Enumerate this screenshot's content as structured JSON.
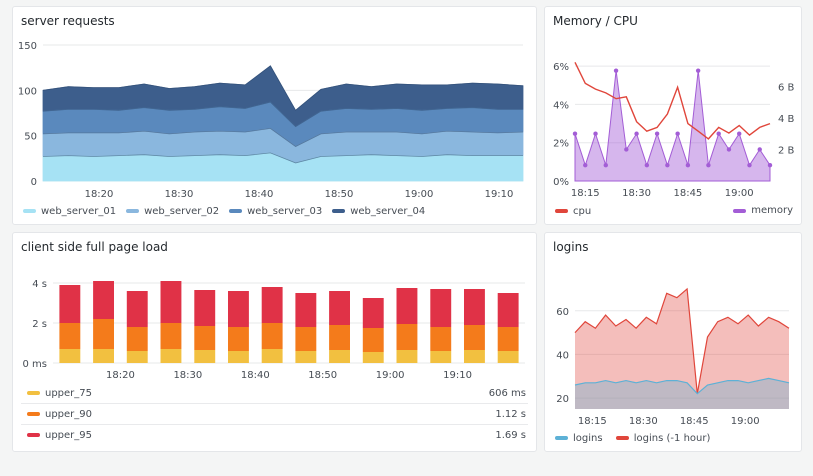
{
  "colors": {
    "web_server_01": "#a6e2f4",
    "web_server_02": "#8ab7de",
    "web_server_03": "#5a89bd",
    "web_server_04": "#3d5e8c",
    "cpu": "#e0463b",
    "memory": "#a35dd6",
    "upper_75": "#f2c040",
    "upper_90": "#f47b1b",
    "upper_95": "#e03247",
    "logins": "#5db1d6",
    "logins_prev": "#e0463b"
  },
  "panels": {
    "server_requests": {
      "title": "server requests",
      "legend": [
        "web_server_01",
        "web_server_02",
        "web_server_03",
        "web_server_04"
      ]
    },
    "memory_cpu": {
      "title": "Memory / CPU",
      "legend": [
        "cpu",
        "memory"
      ]
    },
    "page_load": {
      "title": "client side full page load",
      "legend": [
        {
          "name": "upper_75",
          "value": "606 ms"
        },
        {
          "name": "upper_90",
          "value": "1.12 s"
        },
        {
          "name": "upper_95",
          "value": "1.69 s"
        }
      ]
    },
    "logins": {
      "title": "logins",
      "legend": [
        "logins",
        "logins (-1 hour)"
      ]
    }
  },
  "chart_data": [
    {
      "type": "area",
      "title": "server requests",
      "stacked": true,
      "x": [
        "18:13",
        "18:17",
        "18:20",
        "18:23",
        "18:27",
        "18:30",
        "18:33",
        "18:37",
        "18:40",
        "18:43",
        "18:45",
        "18:47",
        "18:50",
        "18:53",
        "18:57",
        "19:00",
        "19:03",
        "19:07",
        "19:10",
        "19:13"
      ],
      "x_ticks": [
        "18:20",
        "18:30",
        "18:40",
        "18:50",
        "19:00",
        "19:10"
      ],
      "y_ticks": [
        "0",
        "50",
        "100",
        "150"
      ],
      "ylim": [
        0,
        150
      ],
      "series": [
        {
          "name": "web_server_01",
          "values": [
            27,
            28,
            27,
            28,
            29,
            27,
            28,
            29,
            28,
            31,
            20,
            27,
            28,
            29,
            28,
            27,
            29,
            28,
            28,
            28
          ]
        },
        {
          "name": "web_server_02",
          "values": [
            25,
            25,
            26,
            25,
            26,
            25,
            26,
            26,
            26,
            27,
            18,
            25,
            26,
            25,
            26,
            25,
            26,
            26,
            25,
            26
          ]
        },
        {
          "name": "web_server_03",
          "values": [
            25,
            26,
            26,
            25,
            26,
            26,
            25,
            27,
            26,
            29,
            22,
            25,
            26,
            25,
            26,
            26,
            25,
            27,
            26,
            25
          ]
        },
        {
          "name": "web_server_04",
          "values": [
            23,
            25,
            24,
            25,
            26,
            24,
            25,
            26,
            26,
            40,
            18,
            24,
            27,
            25,
            27,
            28,
            26,
            27,
            28,
            26
          ]
        }
      ]
    },
    {
      "type": "line",
      "title": "Memory / CPU",
      "x": [
        "18:12",
        "18:15",
        "18:18",
        "18:21",
        "18:24",
        "18:27",
        "18:30",
        "18:33",
        "18:36",
        "18:39",
        "18:42",
        "18:45",
        "18:48",
        "18:51",
        "18:54",
        "18:57",
        "19:00",
        "19:03",
        "19:06",
        "19:09"
      ],
      "x_ticks": [
        "18:15",
        "18:30",
        "18:45",
        "19:00"
      ],
      "y_left_ticks": [
        "0%",
        "2%",
        "4%",
        "6%"
      ],
      "y_right_ticks": [
        "2 B",
        "4 B",
        "6 B"
      ],
      "series": [
        {
          "name": "cpu",
          "axis": "left",
          "unit": "%",
          "values": [
            6.2,
            5.1,
            4.8,
            4.6,
            4.3,
            4.4,
            3.1,
            2.6,
            2.8,
            3.5,
            4.9,
            3.0,
            2.6,
            2.2,
            2.8,
            2.5,
            2.9,
            2.4,
            2.8,
            3.0
          ]
        },
        {
          "name": "memory",
          "axis": "right",
          "unit": "B",
          "values": [
            3,
            1,
            3,
            1,
            7,
            2,
            3,
            1,
            3,
            1,
            3,
            1,
            7,
            1,
            3,
            2,
            3,
            1,
            2,
            1
          ]
        }
      ]
    },
    {
      "type": "bar",
      "title": "client side full page load",
      "stacked": true,
      "x": [
        "18:15",
        "18:20",
        "18:25",
        "18:30",
        "18:35",
        "18:40",
        "18:45",
        "18:50",
        "18:55",
        "19:00",
        "19:05",
        "19:10",
        "19:15",
        "19:20"
      ],
      "x_ticks": [
        "18:20",
        "18:30",
        "18:40",
        "18:50",
        "19:00",
        "19:10"
      ],
      "y_ticks": [
        "0 ms",
        "2 s",
        "4 s"
      ],
      "ylim": [
        0,
        4.5
      ],
      "series": [
        {
          "name": "upper_75",
          "values": [
            0.7,
            0.7,
            0.6,
            0.7,
            0.65,
            0.6,
            0.7,
            0.6,
            0.65,
            0.55,
            0.65,
            0.6,
            0.65,
            0.6
          ]
        },
        {
          "name": "upper_90",
          "values": [
            1.3,
            1.5,
            1.2,
            1.3,
            1.2,
            1.2,
            1.3,
            1.2,
            1.25,
            1.2,
            1.3,
            1.2,
            1.25,
            1.2
          ]
        },
        {
          "name": "upper_95",
          "values": [
            1.9,
            1.9,
            1.8,
            2.1,
            1.8,
            1.8,
            1.8,
            1.7,
            1.7,
            1.5,
            1.8,
            1.9,
            1.8,
            1.7
          ]
        }
      ]
    },
    {
      "type": "area",
      "title": "logins",
      "x": [
        "18:10",
        "18:13",
        "18:16",
        "18:19",
        "18:22",
        "18:25",
        "18:28",
        "18:31",
        "18:34",
        "18:37",
        "18:40",
        "18:43",
        "18:44",
        "18:46",
        "18:49",
        "18:52",
        "18:55",
        "18:58",
        "19:01",
        "19:04",
        "19:07",
        "19:10"
      ],
      "x_ticks": [
        "18:15",
        "18:30",
        "18:45",
        "19:00"
      ],
      "y_ticks": [
        "20",
        "40",
        "60"
      ],
      "ylim": [
        15,
        75
      ],
      "series": [
        {
          "name": "logins",
          "values": [
            26,
            27,
            27,
            28,
            27,
            28,
            27,
            28,
            27,
            28,
            28,
            27,
            22,
            26,
            27,
            28,
            28,
            27,
            28,
            29,
            28,
            27
          ]
        },
        {
          "name": "logins (-1 hour)",
          "values": [
            50,
            55,
            52,
            58,
            53,
            56,
            52,
            57,
            54,
            68,
            66,
            70,
            22,
            48,
            55,
            57,
            54,
            58,
            53,
            57,
            55,
            52
          ]
        }
      ]
    }
  ]
}
